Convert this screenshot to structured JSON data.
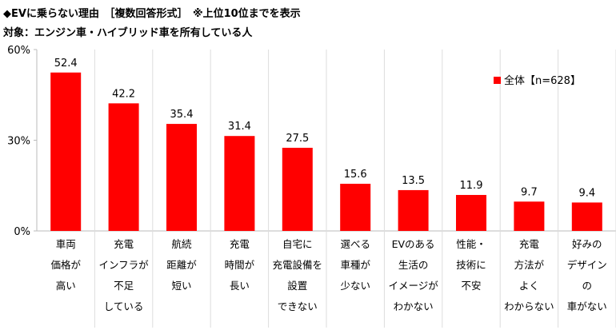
{
  "chart_data": {
    "type": "bar",
    "title": "◆EVに乗らない理由　［複数回答形式］　※上位10位までを表示",
    "subtitle": "対象：エンジン車・ハイブリッド車を所有している人",
    "categories": [
      [
        "車両",
        "価格が",
        "高い"
      ],
      [
        "充電",
        "インフラが",
        "不足",
        "している"
      ],
      [
        "航続",
        "距離が",
        "短い"
      ],
      [
        "充電",
        "時間が",
        "長い"
      ],
      [
        "自宅に",
        "充電設備を",
        "設置",
        "できない"
      ],
      [
        "選べる",
        "車種が",
        "少ない"
      ],
      [
        "EVのある",
        "生活の",
        "イメージが",
        "わかない"
      ],
      [
        "性能・",
        "技術に",
        "不安"
      ],
      [
        "充電",
        "方法が",
        "よく",
        "わからない"
      ],
      [
        "好みの",
        "デザイン",
        "の",
        "車がない"
      ]
    ],
    "series": [
      {
        "name": "全体【n=628】",
        "values": [
          52.4,
          42.2,
          35.4,
          31.4,
          27.5,
          15.6,
          13.5,
          11.9,
          9.7,
          9.4
        ],
        "color": "#FF0000"
      }
    ],
    "value_labels": [
      "52.4",
      "42.2",
      "35.4",
      "31.4",
      "27.5",
      "15.6",
      "13.5",
      "11.9",
      "9.7",
      "9.4"
    ],
    "yticks": [
      "0%",
      "30%",
      "60%"
    ],
    "ytick_values": [
      0,
      30,
      60
    ],
    "ylim": [
      0,
      60
    ],
    "grid": false,
    "legend_position": "top-right"
  }
}
